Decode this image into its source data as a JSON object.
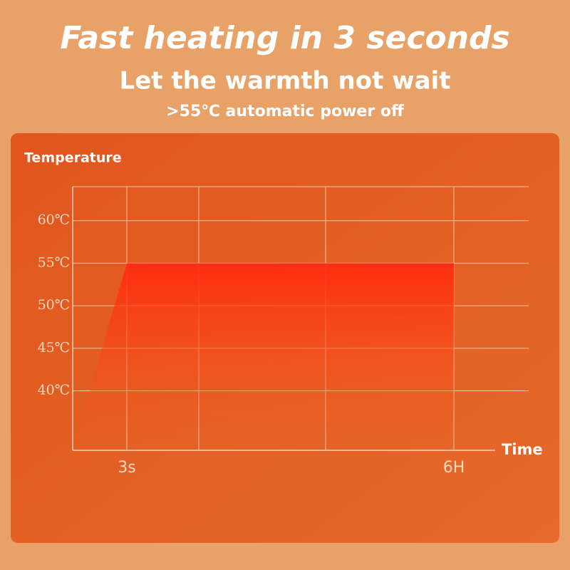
{
  "chart_data": {
    "type": "area",
    "title": "Fast heating in 3 seconds",
    "subtitle": "Let the warmth not wait",
    "annotation": ">55℃ automatic power off",
    "y_label": "Temperature",
    "x_label": "Time",
    "categories": [
      null,
      "3s",
      "6H"
    ],
    "series": [
      {
        "color": "#ff3c14",
        "values": [
          34,
          55,
          55
        ]
      }
    ],
    "ylim": [
      33,
      64
    ],
    "yticks": [
      {
        "value": 40,
        "label": "40℃"
      },
      {
        "value": 45,
        "label": "45℃"
      },
      {
        "value": 50,
        "label": "50℃"
      },
      {
        "value": 55,
        "label": "55℃"
      },
      {
        "value": 60,
        "label": "60℃"
      }
    ],
    "grid": true
  }
}
